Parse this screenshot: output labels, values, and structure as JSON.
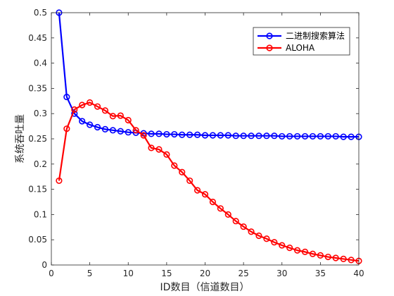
{
  "chart_data": {
    "type": "line",
    "title": "",
    "xlabel": "ID数目（信道数目）",
    "ylabel": "系统吞吐量",
    "xlim": [
      0,
      40
    ],
    "ylim": [
      0,
      0.5
    ],
    "xticks": [
      0,
      5,
      10,
      15,
      20,
      25,
      30,
      35,
      40
    ],
    "yticks": [
      0,
      0.05,
      0.1,
      0.15,
      0.2,
      0.25,
      0.3,
      0.35,
      0.4,
      0.45,
      0.5
    ],
    "xtick_labels": [
      "0",
      "5",
      "10",
      "15",
      "20",
      "25",
      "30",
      "35",
      "40"
    ],
    "ytick_labels": [
      "0",
      "0.05",
      "0.1",
      "0.15",
      "0.2",
      "0.25",
      "0.3",
      "0.35",
      "0.4",
      "0.45",
      "0.5"
    ],
    "grid": false,
    "legend_position": "top-right",
    "x": [
      1,
      2,
      3,
      4,
      5,
      6,
      7,
      8,
      9,
      10,
      11,
      12,
      13,
      14,
      15,
      16,
      17,
      18,
      19,
      20,
      21,
      22,
      23,
      24,
      25,
      26,
      27,
      28,
      29,
      30,
      31,
      32,
      33,
      34,
      35,
      36,
      37,
      38,
      39,
      40
    ],
    "series": [
      {
        "name": "二进制搜索算法",
        "color": "#0000ff",
        "marker": "circle",
        "values": [
          0.5,
          0.333,
          0.3,
          0.285,
          0.278,
          0.273,
          0.269,
          0.267,
          0.265,
          0.263,
          0.262,
          0.261,
          0.26,
          0.26,
          0.259,
          0.259,
          0.258,
          0.258,
          0.258,
          0.257,
          0.257,
          0.257,
          0.257,
          0.256,
          0.256,
          0.256,
          0.256,
          0.256,
          0.256,
          0.255,
          0.255,
          0.255,
          0.255,
          0.255,
          0.255,
          0.255,
          0.255,
          0.254,
          0.254,
          0.254
        ]
      },
      {
        "name": "ALOHA",
        "color": "#ff0000",
        "marker": "circle",
        "values": [
          0.167,
          0.27,
          0.308,
          0.317,
          0.322,
          0.314,
          0.306,
          0.295,
          0.296,
          0.287,
          0.267,
          0.257,
          0.232,
          0.229,
          0.219,
          0.197,
          0.184,
          0.167,
          0.148,
          0.14,
          0.125,
          0.112,
          0.1,
          0.087,
          0.076,
          0.066,
          0.058,
          0.052,
          0.045,
          0.039,
          0.034,
          0.029,
          0.026,
          0.022,
          0.019,
          0.016,
          0.014,
          0.012,
          0.01,
          0.008
        ]
      }
    ]
  }
}
